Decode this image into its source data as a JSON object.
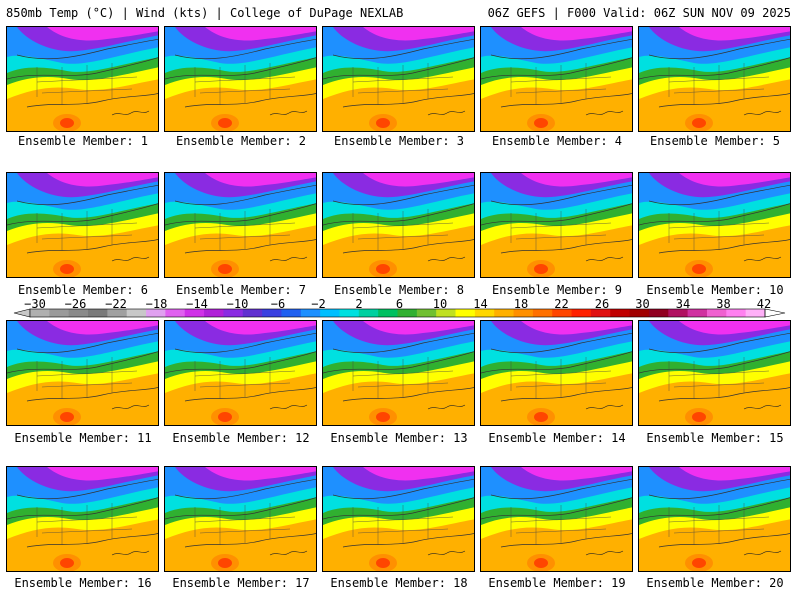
{
  "header": {
    "left": "850mb Temp (°C) | Wind (kts) | College of DuPage NEXLAB",
    "right": "06Z GEFS | F000 Valid: 06Z SUN NOV 09 2025"
  },
  "members": [
    "Ensemble Member: 1",
    "Ensemble Member: 2",
    "Ensemble Member: 3",
    "Ensemble Member: 4",
    "Ensemble Member: 5",
    "Ensemble Member: 6",
    "Ensemble Member: 7",
    "Ensemble Member: 8",
    "Ensemble Member: 9",
    "Ensemble Member: 10",
    "Ensemble Member: 11",
    "Ensemble Member: 12",
    "Ensemble Member: 13",
    "Ensemble Member: 14",
    "Ensemble Member: 15",
    "Ensemble Member: 16",
    "Ensemble Member: 17",
    "Ensemble Member: 18",
    "Ensemble Member: 19",
    "Ensemble Member: 20"
  ],
  "colorbar": {
    "labels": [
      "−30",
      "−26",
      "−22",
      "−18",
      "−14",
      "−10",
      "−6",
      "−2",
      "2",
      "6",
      "10",
      "14",
      "18",
      "22",
      "26",
      "30",
      "34",
      "38",
      "42"
    ],
    "colors": [
      "#b0b0b0",
      "#9a9a9a",
      "#8a8a8a",
      "#7a7a7a",
      "#a0a0a0",
      "#c8c8c8",
      "#e0a0f0",
      "#e060f0",
      "#d030e8",
      "#b020d8",
      "#8a2be2",
      "#6030d0",
      "#3a40e0",
      "#2060f0",
      "#1e90ff",
      "#00bfff",
      "#00e0e0",
      "#00d0a0",
      "#00c060",
      "#30b030",
      "#70c030",
      "#c0e020",
      "#ffff00",
      "#ffd700",
      "#ffb000",
      "#ff9000",
      "#ff7000",
      "#ff4500",
      "#ff2000",
      "#e01010",
      "#c00000",
      "#a00000",
      "#900020",
      "#b01060",
      "#d030a0",
      "#f060d0",
      "#ff80f0",
      "#ffb0f8"
    ]
  },
  "map_colors": {
    "cold": "#f030f0",
    "cold2": "#8a2be2",
    "mid": "#1e90ff",
    "cyan": "#00e0e0",
    "green": "#30b030",
    "yellow": "#ffff00",
    "orange": "#ffb000",
    "warm": "#ff9000",
    "hot": "#ff4500"
  }
}
